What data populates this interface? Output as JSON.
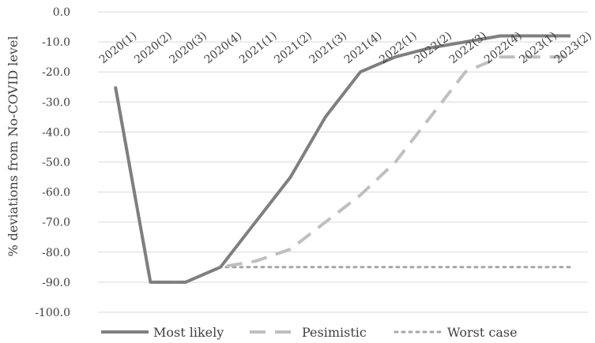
{
  "chart_data": {
    "type": "line",
    "title": "",
    "xlabel": "",
    "ylabel": "% deviations from No-COVID level",
    "categories": [
      "2020(1)",
      "2020(2)",
      "2020(3)",
      "2020(4)",
      "2021(1)",
      "2021(2)",
      "2021(3)",
      "2021(4)",
      "2022(1)",
      "2022(2)",
      "2022(3)",
      "2022(4)",
      "2023(1)",
      "2023(2)"
    ],
    "ylim": [
      -100,
      0
    ],
    "yticks": [
      "0.0",
      "-10.0",
      "-20.0",
      "-30.0",
      "-40.0",
      "-50.0",
      "-60.0",
      "-70.0",
      "-80.0",
      "-90.0",
      "-100.0"
    ],
    "grid": true,
    "legend_position": "bottom",
    "series": [
      {
        "name": "Most likely",
        "color": "#7f7f7f",
        "style": "solid",
        "values": [
          -25,
          -90,
          -90,
          -85,
          -70,
          -55,
          -35,
          -20,
          -15,
          -12,
          -10,
          -8,
          -8,
          -8
        ]
      },
      {
        "name": "Pesimistic",
        "color": "#bfbfbf",
        "style": "dashed",
        "values": [
          -25,
          -90,
          -90,
          -85,
          -83,
          -79,
          -70,
          -61,
          -50,
          -35,
          -20,
          -15,
          -15,
          -15
        ]
      },
      {
        "name": "Worst case",
        "color": "#a6a6a6",
        "style": "dotted",
        "values": [
          -25,
          -90,
          -90,
          -85,
          -85,
          -85,
          -85,
          -85,
          -85,
          -85,
          -85,
          -85,
          -85,
          -85
        ]
      }
    ]
  }
}
